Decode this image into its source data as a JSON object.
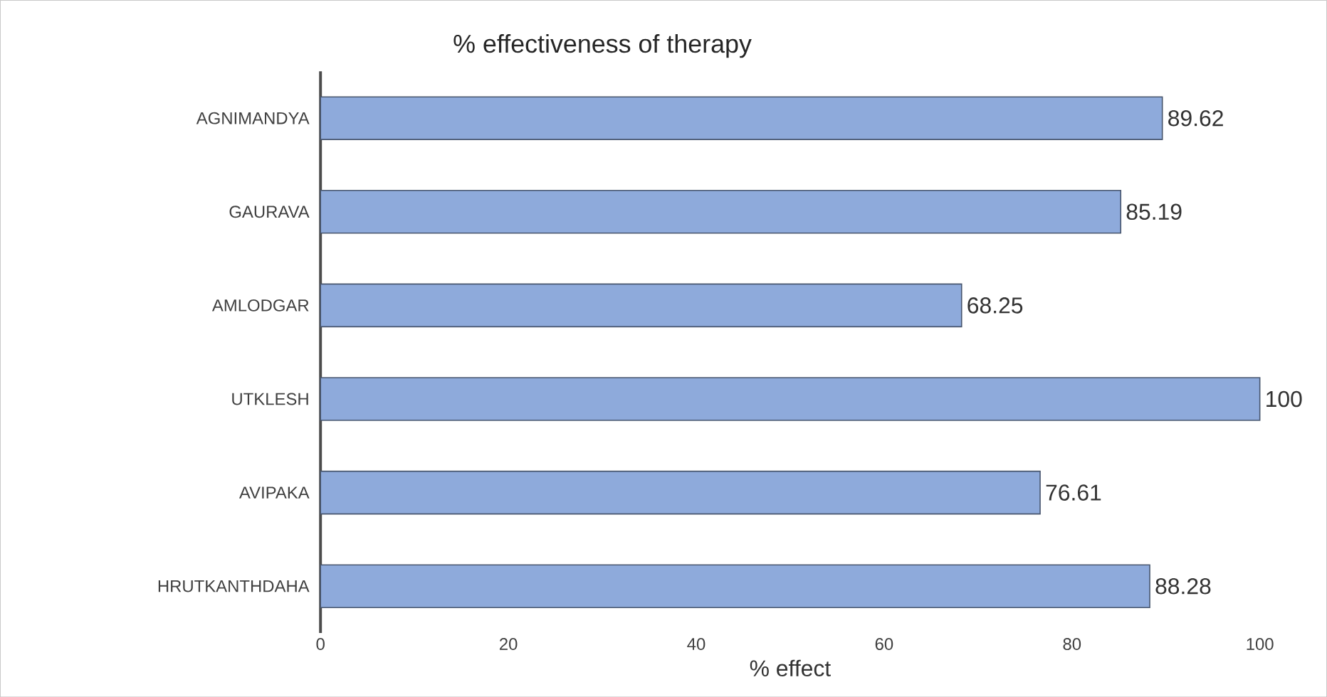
{
  "chart_data": {
    "type": "bar",
    "orientation": "horizontal",
    "title": "% effectiveness of therapy",
    "xlabel": "% effect",
    "categories": [
      "AGNIMANDYA",
      "GAURAVA",
      "AMLODGAR",
      "UTKLESH",
      "AVIPAKA",
      "HRUTKANTHDAHA"
    ],
    "values": [
      89.62,
      85.19,
      68.25,
      100,
      76.61,
      88.28
    ],
    "color": "#8eaadb",
    "xlim": [
      0,
      100
    ],
    "xticks": [
      0,
      20,
      40,
      60,
      80,
      100
    ],
    "data_labels": true
  }
}
